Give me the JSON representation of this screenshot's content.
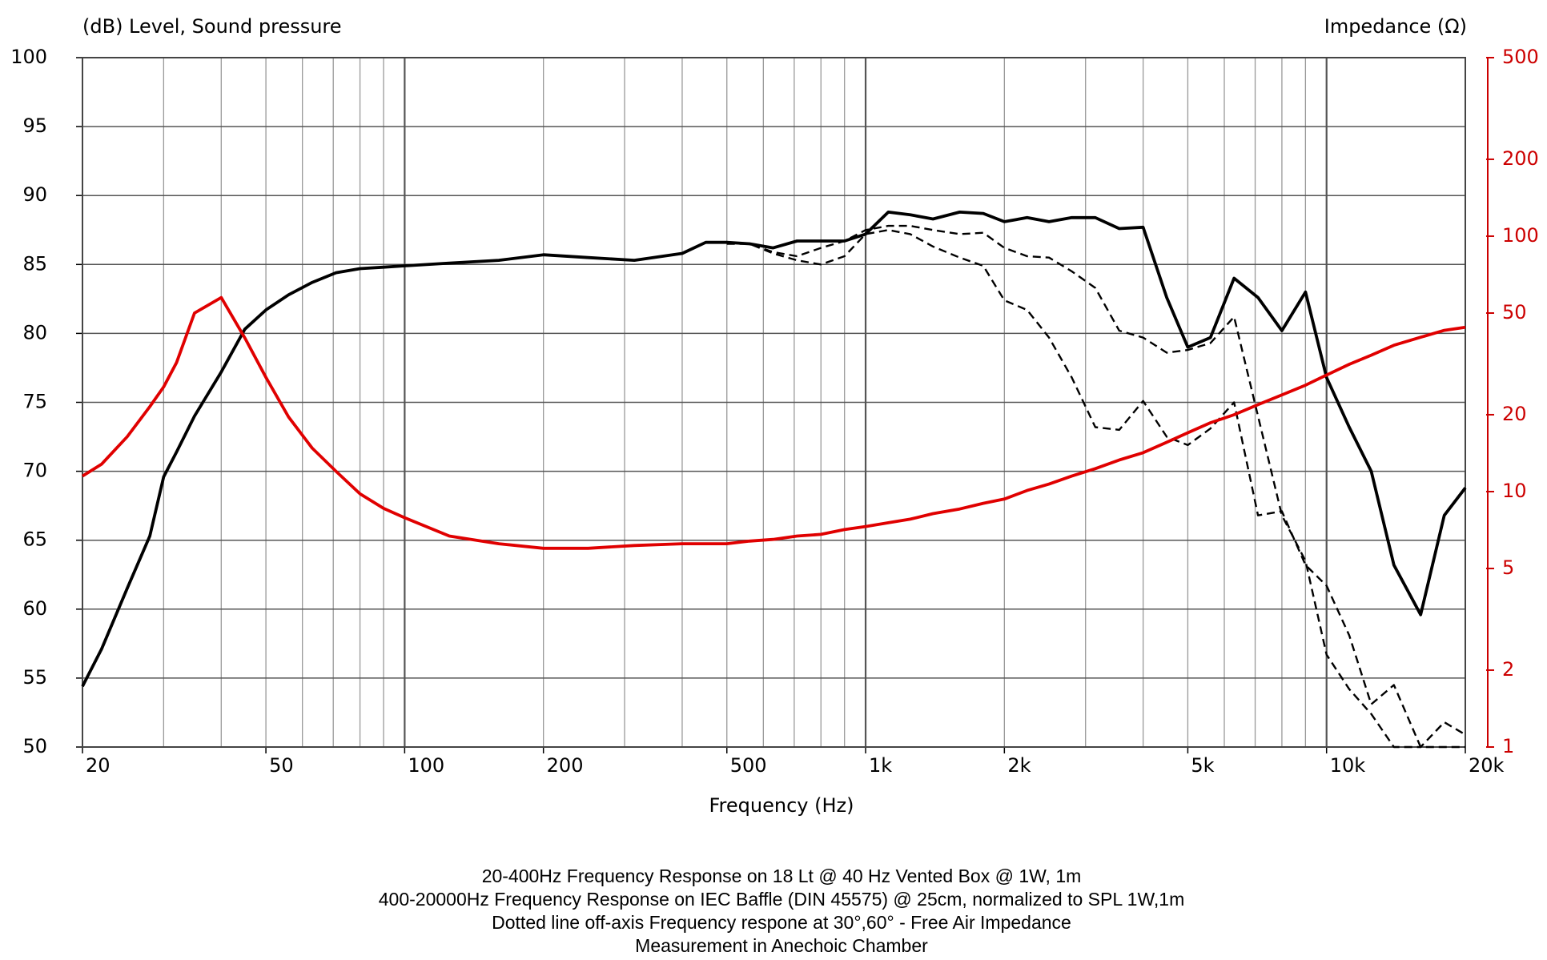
{
  "chart_data": {
    "type": "line",
    "ylabel": "(dB)  Level, Sound pressure",
    "y2label": "Impedance  (Ω)",
    "xlabel": "Frequency  (Hz)",
    "notes": [
      "20-400Hz Frequency Response on 18 Lt @ 40 Hz Vented Box @ 1W, 1m",
      "400-20000Hz Frequency Response on   IEC Baffle (DIN 45575) @ 25cm, normalized to SPL 1W,1m",
      "Dotted line off-axis Frequency respone at 30°,60°  -    Free Air Impedance",
      "Measurement in Anechoic Chamber"
    ],
    "xscale": "log",
    "y2scale": "log",
    "grid": true,
    "xlim": [
      20,
      20000
    ],
    "xticks": [
      20,
      50,
      100,
      200,
      500,
      {
        "value": 1000,
        "label": "1k"
      },
      {
        "value": 2000,
        "label": "2k"
      },
      {
        "value": 5000,
        "label": "5k"
      },
      {
        "value": 10000,
        "label": "10k"
      },
      {
        "value": 20000,
        "label": "20k"
      }
    ],
    "xgrid": [
      20,
      30,
      40,
      50,
      60,
      70,
      80,
      90,
      100,
      200,
      300,
      400,
      500,
      600,
      700,
      800,
      900,
      1000,
      2000,
      3000,
      4000,
      5000,
      6000,
      7000,
      8000,
      9000,
      10000,
      20000
    ],
    "ylim": [
      50,
      100
    ],
    "yticks": [
      50,
      55,
      60,
      65,
      70,
      75,
      80,
      85,
      90,
      95,
      100
    ],
    "y2lim": [
      1,
      500
    ],
    "y2ticks": [
      1,
      2,
      5,
      10,
      20,
      50,
      100,
      200,
      500
    ],
    "y2color": "#cc0000",
    "x": [
      20,
      22,
      25,
      28,
      30,
      32,
      35,
      40,
      45,
      50,
      56,
      63,
      71,
      80,
      90,
      100,
      125,
      160,
      200,
      250,
      315,
      400,
      450,
      500,
      560,
      630,
      710,
      800,
      900,
      1000,
      1120,
      1250,
      1400,
      1600,
      1800,
      2000,
      2240,
      2500,
      2800,
      3150,
      3550,
      4000,
      4500,
      5000,
      5600,
      6300,
      7100,
      8000,
      9000,
      10000,
      11200,
      12500,
      14000,
      16000,
      18000,
      20000
    ],
    "series": [
      {
        "color": "#000000",
        "dash": "solid",
        "values": [
          54.4,
          57.1,
          61.5,
          65.3,
          69.6,
          71.4,
          74,
          77.2,
          80.3,
          81.7,
          82.8,
          83.7,
          84.4,
          84.7,
          84.8,
          84.9,
          85.1,
          85.3,
          85.7,
          85.5,
          85.3,
          85.8,
          86.6,
          86.6,
          86.5,
          86.2,
          86.7,
          86.7,
          86.7,
          87.2,
          88.8,
          88.6,
          88.3,
          88.8,
          88.7,
          88.1,
          88.4,
          88.1,
          88.4,
          88.4,
          87.6,
          87.7,
          82.6,
          79,
          79.7,
          84,
          82.6,
          80.2,
          83,
          76.8,
          73.2,
          70,
          63.2,
          59.6,
          66.8,
          68.8
        ]
      },
      {
        "color": "#000000",
        "dash": "dashed",
        "values": [
          null,
          null,
          null,
          null,
          null,
          null,
          null,
          null,
          null,
          null,
          null,
          null,
          null,
          null,
          null,
          null,
          null,
          null,
          null,
          null,
          null,
          null,
          null,
          86.6,
          86.5,
          85.9,
          85.6,
          86.2,
          86.7,
          87.5,
          87.8,
          87.8,
          87.5,
          87.2,
          87.3,
          86.2,
          85.6,
          85.5,
          84.5,
          83.3,
          80.2,
          79.7,
          78.6,
          78.8,
          79.3,
          81.2,
          74,
          66.8,
          63.5,
          56.7,
          54.2,
          52.4,
          50,
          50,
          51.8,
          50.9
        ]
      },
      {
        "color": "#000000",
        "dash": "dashed",
        "values": [
          null,
          null,
          null,
          null,
          null,
          null,
          null,
          null,
          null,
          null,
          null,
          null,
          null,
          null,
          null,
          null,
          null,
          null,
          null,
          null,
          null,
          null,
          null,
          86.5,
          86.5,
          85.8,
          85.3,
          85,
          85.6,
          87.2,
          87.5,
          87.2,
          86.3,
          85.5,
          84.9,
          82.4,
          81.7,
          79.7,
          76.8,
          73.2,
          73,
          75.1,
          72.5,
          71.9,
          73.1,
          75,
          66.8,
          67.1,
          63.2,
          61.7,
          58.1,
          53.1,
          54.5,
          50,
          50,
          50
        ]
      },
      {
        "color": "#e00000",
        "dash": "solid",
        "axis": "y2",
        "values": [
          11.5,
          12.8,
          16.4,
          21.5,
          25.7,
          32,
          50,
          57.5,
          40,
          28,
          19.6,
          14.8,
          12,
          9.8,
          8.6,
          7.9,
          6.7,
          6.25,
          6,
          6,
          6.15,
          6.25,
          6.25,
          6.25,
          6.4,
          6.5,
          6.7,
          6.8,
          7.1,
          7.3,
          7.55,
          7.8,
          8.2,
          8.55,
          9,
          9.35,
          10.1,
          10.7,
          11.5,
          12.3,
          13.3,
          14.2,
          15.6,
          17,
          18.6,
          20,
          21.9,
          23.9,
          26.1,
          28.6,
          31.5,
          34.2,
          37.4,
          40.2,
          42.8,
          44
        ]
      }
    ]
  }
}
